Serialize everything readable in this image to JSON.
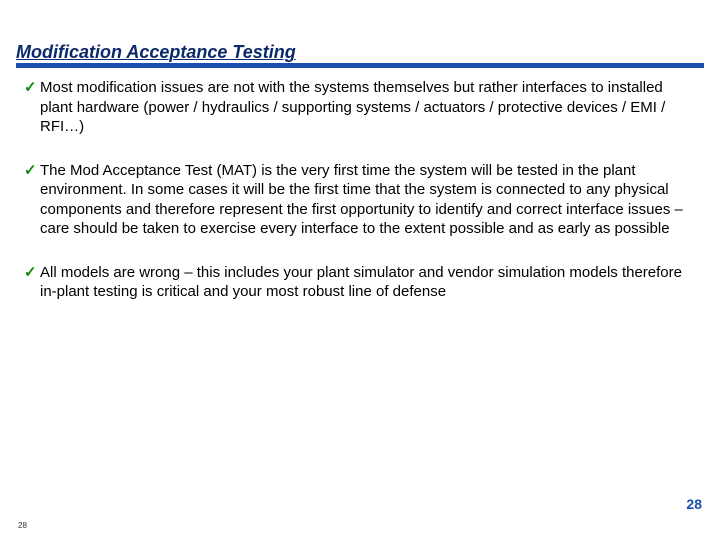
{
  "slide": {
    "title": "Modification Acceptance Testing",
    "title_color": "#0b2a6b",
    "title_fontsize": 18,
    "rule_color": "#1a4fb0",
    "rule_thickness": 5,
    "background_color": "#ffffff",
    "bullets": [
      {
        "check": "✓",
        "text": "Most modification issues are not with the systems themselves but rather interfaces to installed plant hardware (power / hydraulics / supporting systems / actuators / protective devices / EMI / RFI…)"
      },
      {
        "check": "✓",
        "text": "The Mod Acceptance Test (MAT) is the very first time the system will be tested in the plant environment. In some cases it will be the first time that the system is connected to any physical components and therefore represent the first opportunity to identify and correct interface issues – care should be taken to exercise every interface to the extent possible and as early as possible"
      },
      {
        "check": "✓",
        "text": "All models are wrong – this includes your plant simulator and vendor simulation models therefore in-plant testing is critical and your most robust line of defense"
      }
    ],
    "bullet_check_color": "#0b8a0b",
    "bullet_text_color": "#000000",
    "bullet_fontsize": 15,
    "page_number": "28",
    "page_number_color": "#1a4fb0",
    "page_number_fontsize": 14,
    "page_number_small": "28",
    "page_number_small_fontsize": 8
  }
}
